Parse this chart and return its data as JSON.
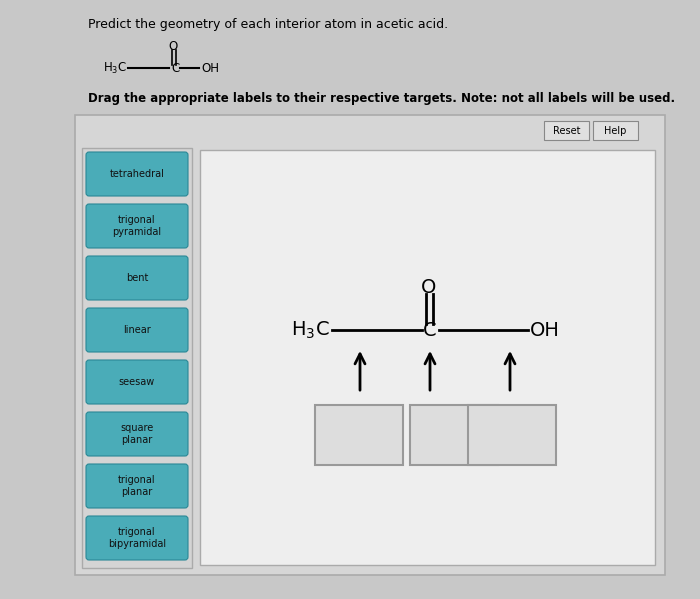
{
  "title": "Predict the geometry of each interior atom in acetic acid.",
  "subtitle_bold": "Drag the appropriate labels to their respective targets. Note: not all labels will be used.",
  "bg_color": "#c8c8c8",
  "outer_panel_bg": "#d4d4d4",
  "outer_panel_border": "#999999",
  "inner_panel_bg": "#e8e8e8",
  "inner_panel_border": "#aaaaaa",
  "button_bg": "#4aacb8",
  "button_border": "#2a8a96",
  "button_text_color": "#111111",
  "button_labels": [
    "tetrahedral",
    "trigonal\npyramidal",
    "bent",
    "linear",
    "seesaw",
    "square\nplanar",
    "trigonal\nplanar",
    "trigonal\nbipyramidal"
  ],
  "reset_help_buttons": [
    "Reset",
    "Help"
  ]
}
